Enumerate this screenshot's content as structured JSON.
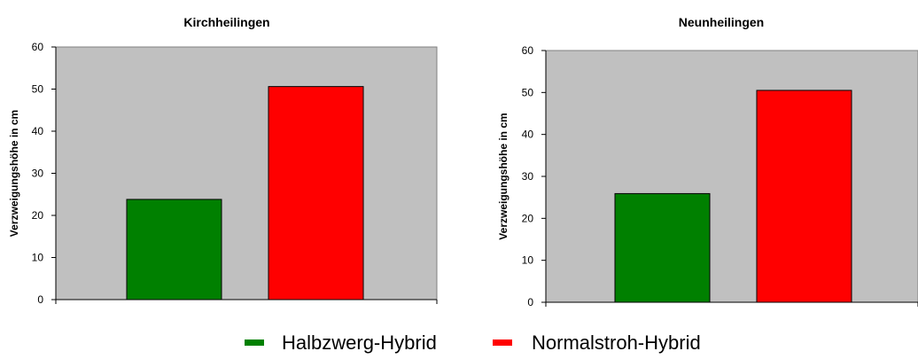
{
  "chart_data": [
    {
      "type": "bar",
      "title": "Kirchheilingen",
      "ylabel": "Verzweigungshöhe in cm",
      "xlabel": "",
      "ylim": [
        0,
        60
      ],
      "yticks": [
        0,
        10,
        20,
        30,
        40,
        50,
        60
      ],
      "grid": false,
      "plot_background": "#c0c0c0",
      "series": [
        {
          "name": "Halbzwerg-Hybrid",
          "values": [
            23.8
          ],
          "color": "#008000"
        },
        {
          "name": "Normalstroh-Hybrid",
          "values": [
            50.6
          ],
          "color": "#ff0000"
        }
      ]
    },
    {
      "type": "bar",
      "title": "Neunheilingen",
      "ylabel": "Verzweigungshöhe in cm",
      "xlabel": "",
      "ylim": [
        0,
        60
      ],
      "yticks": [
        0,
        10,
        20,
        30,
        40,
        50,
        60
      ],
      "grid": false,
      "plot_background": "#c0c0c0",
      "series": [
        {
          "name": "Halbzwerg-Hybrid",
          "values": [
            25.9
          ],
          "color": "#008000"
        },
        {
          "name": "Normalstroh-Hybrid",
          "values": [
            50.5
          ],
          "color": "#ff0000"
        }
      ]
    }
  ],
  "legend": {
    "placement": "bottom-center",
    "items": [
      {
        "label": "Halbzwerg-Hybrid",
        "color": "#008000"
      },
      {
        "label": "Normalstroh-Hybrid",
        "color": "#ff0000"
      }
    ]
  }
}
